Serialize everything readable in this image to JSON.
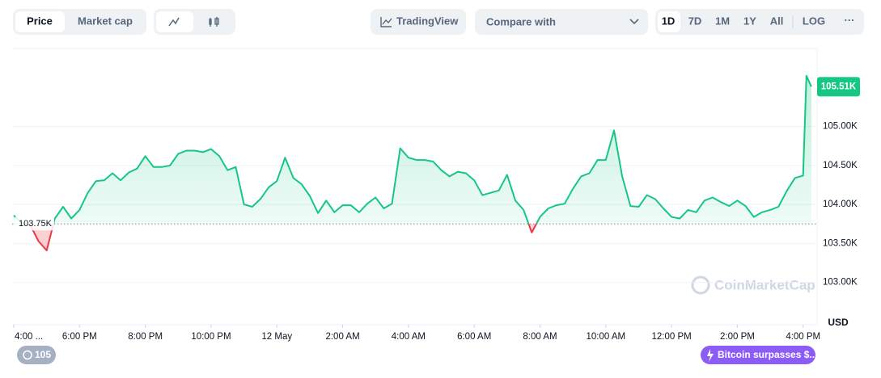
{
  "ui": {
    "toggle": [
      "Price",
      "Market cap"
    ],
    "tradingview": "TradingView",
    "compare": "Compare with",
    "ranges": [
      "1D",
      "7D",
      "1M",
      "1Y",
      "All",
      "LOG"
    ],
    "more": "···",
    "watermark": "CoinMarketCap",
    "events": [
      "105",
      "Bitcoin surpasses $..."
    ]
  },
  "chart_data": {
    "type": "line",
    "y_unit": "USD",
    "x": [
      0,
      0.25,
      0.5,
      0.75,
      1,
      1.25,
      1.5,
      1.75,
      2,
      2.25,
      2.5,
      2.75,
      3,
      3.25,
      3.5,
      3.75,
      4,
      4.25,
      4.5,
      4.75,
      5,
      5.25,
      5.5,
      5.75,
      6,
      6.25,
      6.5,
      6.75,
      7,
      7.25,
      7.5,
      7.75,
      8,
      8.25,
      8.5,
      8.75,
      9,
      9.25,
      9.5,
      9.75,
      10,
      10.25,
      10.5,
      10.75,
      11,
      11.25,
      11.5,
      11.75,
      12,
      12.25,
      12.5,
      12.75,
      13,
      13.25,
      13.5,
      13.75,
      14,
      14.25,
      14.5,
      14.75,
      15,
      15.25,
      15.5,
      15.75,
      16,
      16.25,
      16.5,
      16.75,
      17,
      17.25,
      17.5,
      17.75,
      18,
      18.25,
      18.5,
      18.75,
      19,
      19.25,
      19.5,
      19.75,
      20,
      20.25,
      20.5,
      20.75,
      21,
      21.25,
      21.5,
      21.75,
      22,
      22.25,
      22.5,
      22.75,
      23,
      23.25,
      23.5,
      23.75,
      24,
      24.1,
      24.25
    ],
    "series": [
      {
        "name": "Price",
        "color": "#16c784",
        "down_color": "#ea3943",
        "values": [
          103.86,
          103.76,
          103.74,
          103.53,
          103.41,
          103.82,
          103.97,
          103.82,
          103.93,
          104.15,
          104.3,
          104.31,
          104.4,
          104.31,
          104.41,
          104.46,
          104.62,
          104.48,
          104.48,
          104.5,
          104.65,
          104.69,
          104.69,
          104.67,
          104.71,
          104.62,
          104.44,
          104.48,
          104.0,
          103.97,
          104.07,
          104.22,
          104.3,
          104.6,
          104.34,
          104.26,
          104.11,
          103.89,
          104.05,
          103.9,
          103.99,
          103.99,
          103.9,
          104.01,
          104.09,
          103.95,
          104.01,
          104.72,
          104.6,
          104.57,
          104.57,
          104.55,
          104.44,
          104.36,
          104.42,
          104.4,
          104.31,
          104.12,
          104.15,
          104.18,
          104.38,
          104.05,
          103.93,
          103.64,
          103.84,
          103.95,
          103.99,
          104.01,
          104.2,
          104.36,
          104.4,
          104.57,
          104.57,
          104.95,
          104.36,
          103.98,
          103.97,
          104.12,
          104.07,
          103.95,
          103.84,
          103.82,
          103.93,
          103.9,
          104.05,
          104.09,
          104.03,
          103.98,
          104.05,
          103.98,
          103.84,
          103.9,
          103.93,
          103.97,
          104.17,
          104.34,
          104.37,
          105.65,
          105.51
        ]
      }
    ],
    "baseline": {
      "value": 103.75,
      "label": "103.75K"
    },
    "current": {
      "value": 105.51,
      "label": "105.51K"
    },
    "xlim": [
      0,
      24.4
    ],
    "xticks": [
      {
        "value": 0,
        "label": "4:00 ..."
      },
      {
        "value": 2,
        "label": "6:00 PM"
      },
      {
        "value": 4,
        "label": "8:00 PM"
      },
      {
        "value": 6,
        "label": "10:00 PM"
      },
      {
        "value": 8,
        "label": "12 May"
      },
      {
        "value": 10,
        "label": "2:00 AM"
      },
      {
        "value": 12,
        "label": "4:00 AM"
      },
      {
        "value": 14,
        "label": "6:00 AM"
      },
      {
        "value": 16,
        "label": "8:00 AM"
      },
      {
        "value": 18,
        "label": "10:00 AM"
      },
      {
        "value": 20,
        "label": "12:00 PM"
      },
      {
        "value": 22,
        "label": "2:00 PM"
      },
      {
        "value": 24,
        "label": "4:00 PM"
      }
    ],
    "ylim": [
      102.5,
      106.0
    ],
    "yticks": [
      {
        "value": 103,
        "label": "103.00K"
      },
      {
        "value": 103.5,
        "label": "103.50K"
      },
      {
        "value": 104,
        "label": "104.00K"
      },
      {
        "value": 104.5,
        "label": "104.50K"
      },
      {
        "value": 105,
        "label": "105.00K"
      }
    ],
    "grid": true
  }
}
